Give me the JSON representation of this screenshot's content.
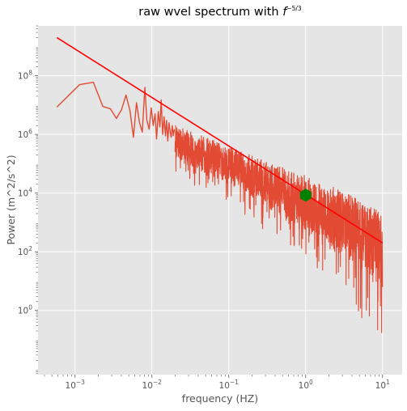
{
  "chart_data": {
    "type": "line",
    "title": "raw wvel spectrum with ",
    "title_math": "f",
    "title_exp": "−5/3",
    "xlabel": "frequency (HZ)",
    "ylabel": "Power (m^2/s^2)",
    "xscale": "log",
    "yscale": "log",
    "xlim": [
      0.00033,
      18
    ],
    "ylim": [
      0.0065,
      5000000000
    ],
    "x_ticks": [
      {
        "value": 0.001,
        "base": "10",
        "exp": "−3"
      },
      {
        "value": 0.01,
        "base": "10",
        "exp": "−2"
      },
      {
        "value": 0.1,
        "base": "10",
        "exp": "−1"
      },
      {
        "value": 1,
        "base": "10",
        "exp": "0"
      },
      {
        "value": 10,
        "base": "10",
        "exp": "1"
      }
    ],
    "y_ticks": [
      {
        "value": 1,
        "base": "10",
        "exp": "0"
      },
      {
        "value": 100,
        "base": "10",
        "exp": "2"
      },
      {
        "value": 10000,
        "base": "10",
        "exp": "4"
      },
      {
        "value": 1000000,
        "base": "10",
        "exp": "6"
      },
      {
        "value": 100000000,
        "base": "10",
        "exp": "8"
      }
    ],
    "grid": true,
    "background": "#e5e5e5",
    "series": [
      {
        "color": "#e24a33",
        "x": [
          0.00058,
          0.00115,
          0.00173,
          0.0023,
          0.00288,
          0.00345,
          0.00403,
          0.0046,
          0.00518,
          0.00575,
          0.0063,
          0.0069,
          0.0075,
          0.0081,
          0.0086,
          0.0092,
          0.0098,
          0.0104,
          0.011,
          0.0115,
          0.0121,
          0.0127,
          0.0132,
          0.0138,
          0.0144,
          0.015,
          0.0155,
          0.0161,
          0.0167,
          0.0173,
          0.0178,
          0.0184,
          0.019,
          0.0196
        ],
        "y": [
          8500000,
          50000000,
          60000000,
          9000000,
          7500000,
          3500000,
          7000000,
          22000000,
          6500000,
          800000,
          12000000,
          2500000,
          1200000,
          40000000,
          3000000,
          1500000,
          8000000,
          2000000,
          5000000,
          700000,
          6000000,
          1800000,
          15000000,
          1000000,
          4000000,
          900000,
          3000000,
          600000,
          2500000,
          1200000,
          800000,
          2000000,
          900000,
          1500000
        ]
      }
    ],
    "noise_envelope": {
      "color": "#e24a33",
      "x": [
        0.02,
        0.05,
        0.1,
        0.3,
        1,
        3,
        10
      ],
      "upper": [
        2000000,
        800000,
        400000,
        120000,
        40000,
        12000,
        2000
      ],
      "center": [
        600000,
        200000,
        100000,
        25000,
        6000,
        1500,
        300
      ],
      "lower": [
        50000,
        10000,
        5000,
        500,
        50,
        5,
        0.05
      ]
    },
    "fit_line": {
      "color": "#ff0000",
      "x": [
        0.00058,
        10
      ],
      "y": [
        2000000000,
        200
      ]
    },
    "marker": {
      "color": "#008000",
      "shape": "hexagon",
      "x": 1,
      "y": 8500
    }
  }
}
